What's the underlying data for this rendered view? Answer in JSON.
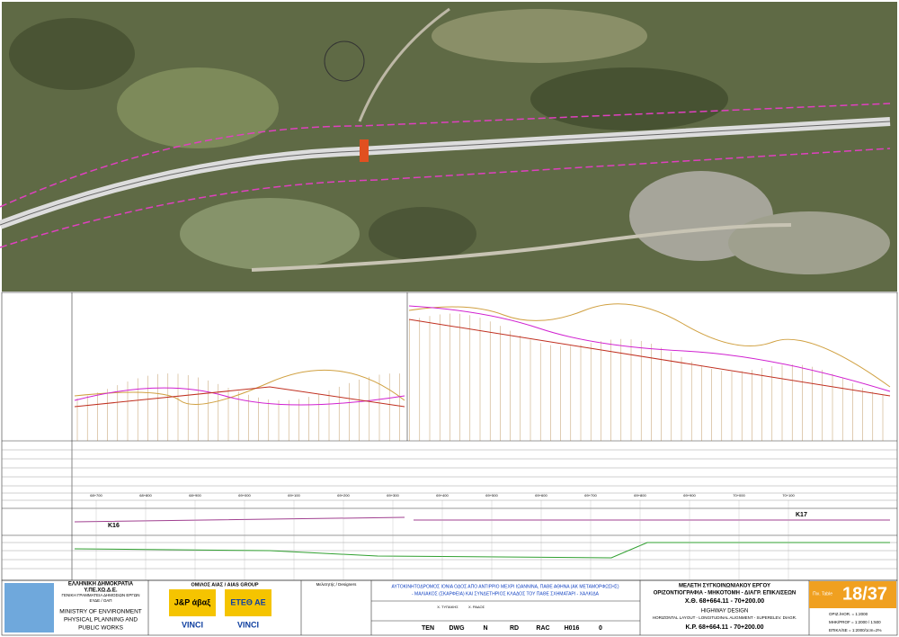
{
  "profile": {
    "stations": [
      "68+700",
      "68+800",
      "68+900",
      "69+000",
      "69+100",
      "69+200",
      "69+300",
      "69+400",
      "69+500",
      "69+600",
      "69+700",
      "69+800",
      "69+900",
      "70+000",
      "70+100"
    ],
    "markers": [
      "K16",
      "K17"
    ]
  },
  "title_block": {
    "ministry": {
      "name": "ΕΛΛΗΝΙΚΗ ΔΗΜΟΚΡΑΤΙΑ",
      "dept": "Υ.ΠΕ.ΧΩ.Δ.Ε.",
      "secretariat": "ΓΕΝΙΚΗ ΓΡΑΜΜΑΤΕΙΑ ΔΗΜΟΣΙΩΝ ΕΡΓΩΝ",
      "unit": "ΕΥΔΕ / ΟΑΠ",
      "english": [
        "MINISTRY OF ENVIRONMENT",
        "PHYSICAL PLANNING AND",
        "PUBLIC WORKS"
      ]
    },
    "group": {
      "name": "ΟΜΙΛΟΣ ΑΙΑΣ / AIAS GROUP",
      "logos": [
        "J&P άβαξ",
        "ΕΤΕΘ ΑΕ",
        "VINCI",
        "VINCI"
      ]
    },
    "designers": "Μελετητής / Designers",
    "project": [
      "ΑΥΤΟΚΙΝΗΤΟΔΡΟΜΟΣ ΙΟΝΙΑ ΟΔΟΣ ΑΠΟ ΑΝΤΙΡΡΙΟ ΜΕΧΡΙ ΙΩΑΝΝΙΝΑ, ΠΑΘΕ ΑΘΗΝΑ (ΑΚ ΜΕΤΑΜΟΡΦΩΣΗΣ)",
      "- ΜΑΛΙΑΚΟΣ (ΣΚΑΡΦΕΙΑ) ΚΑΙ ΣΥΝΔΕΤΗΡΙΟΣ ΚΛΑΔΟΣ ΤΟΥ ΠΑΘΕ ΣΧΗΜΑΤΑΡΙ - ΧΑΛΚΙΔΑ"
    ],
    "signatures": [
      "Χ. ΤΥΠΑΚΗΣ",
      "Χ. ΡΑΔΟΣ"
    ],
    "drawing_title": [
      "ΜΕΛΕΤΗ ΣΥΓΚΟΙΝΩΝΙΑΚΟΥ ΕΡΓΟΥ",
      "ΟΡΙΖΟΝΤΙΟΓΡΑΦΙΑ - ΜΗΚΟΤΟΜΗ - ΔΙΑΓΡ. ΕΠΙΚΛΙΣΕΩΝ",
      "Χ.Θ. 68+664.11 - 70+200.00",
      "HIGHWAY DESIGN",
      "HORIZONTAL LAYOUT - LONGITUDINAL ALIGNMENT - SUPERELEV. DIAGR.",
      "K.P. 68+664.11 - 70+200.00"
    ],
    "table_label": "Πιν. Table",
    "table_number": "18/37",
    "scales": [
      "ΟΡΙΖ./HOR. = 1:2000",
      "ΜΗΚ/PROF = 1:2000 / 1:500",
      "ΕΠΙΚΛ/SE = 1:2000/1cm=2%"
    ],
    "code": [
      "TEN",
      "DWG",
      "N",
      "RD",
      "RAC",
      "H016",
      "0"
    ]
  }
}
